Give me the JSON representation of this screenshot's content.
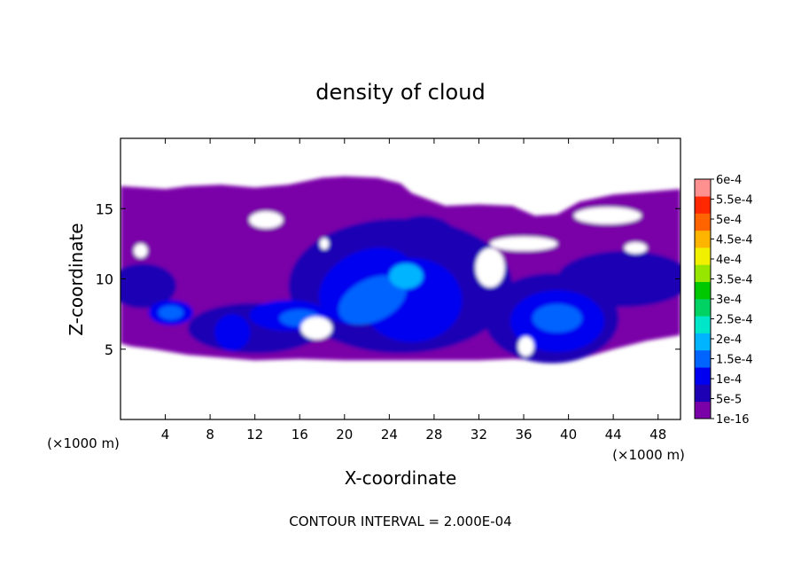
{
  "chart_data": {
    "type": "heatmap",
    "title": "density of cloud",
    "xlabel": "X-coordinate",
    "ylabel": "Z-coordinate",
    "x_unit_left": "(×1000 m)",
    "x_unit_right": "(×1000 m)",
    "xlim": [
      0,
      50
    ],
    "ylim": [
      0,
      20
    ],
    "x_ticks": [
      4,
      8,
      12,
      16,
      20,
      24,
      28,
      32,
      36,
      40,
      44,
      48
    ],
    "y_ticks": [
      5,
      10,
      15
    ],
    "footer": "CONTOUR INTERVAL = 2.000E-04",
    "colorbar": {
      "labels": [
        "1e-16",
        "5e-5",
        "1e-4",
        "1.5e-4",
        "2e-4",
        "2.5e-4",
        "3e-4",
        "3.5e-4",
        "4e-4",
        "4.5e-4",
        "5e-4",
        "5.5e-4",
        "6e-4"
      ],
      "colors": [
        "#7a00a8",
        "#1e00b4",
        "#0000f0",
        "#0064ff",
        "#00b4ff",
        "#00e6c8",
        "#00d264",
        "#00c800",
        "#96e600",
        "#f0f000",
        "#ffb400",
        "#ff6400",
        "#ff2800",
        "#ff9090"
      ]
    },
    "features": [
      {
        "x": 25,
        "z": 10,
        "level": 0.00015
      },
      {
        "x": 22,
        "z": 8,
        "level": 0.00015
      },
      {
        "x": 39,
        "z": 7,
        "level": 0.00015
      },
      {
        "x": 4.5,
        "z": 7.5,
        "level": 0.00015
      },
      {
        "x": 27,
        "z": 12,
        "level": 0.0001
      },
      {
        "x": 10,
        "z": 6,
        "level": 0.0001
      },
      {
        "x": 1.5,
        "z": 9.5,
        "level": 5e-05
      },
      {
        "x": 47,
        "z": 9.5,
        "level": 5e-05
      }
    ]
  }
}
